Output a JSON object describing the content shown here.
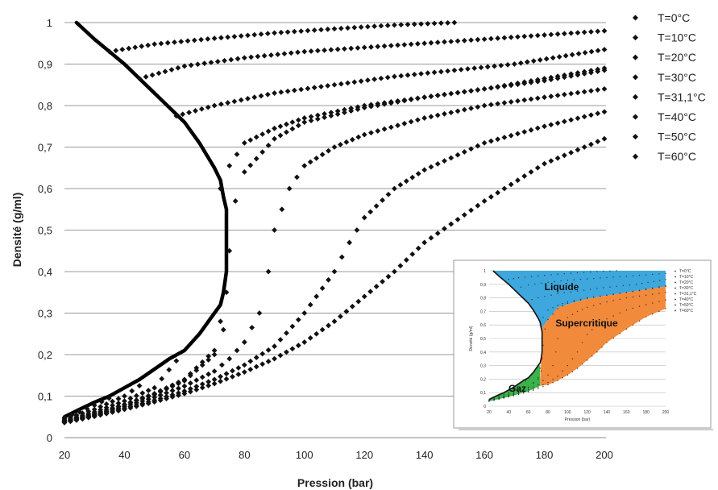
{
  "chart_data": {
    "type": "scatter",
    "xlabel": "Pression (bar)",
    "ylabel": "Densité (g/ml)",
    "xlim": [
      20,
      200
    ],
    "ylim": [
      0,
      1
    ],
    "xticks": [
      "20",
      "40",
      "60",
      "80",
      "100",
      "120",
      "140",
      "160",
      "180",
      "200"
    ],
    "yticks": [
      "0",
      "0,1",
      "0,2",
      "0,3",
      "0,4",
      "0,5",
      "0,6",
      "0,7",
      "0,8",
      "0,9",
      "1"
    ],
    "grid": "horizontal",
    "legend_position": "right",
    "point_color": "#111111",
    "series": [
      {
        "name": "T=0°C",
        "x": [
          20,
          25,
          30,
          34.85,
          35,
          50,
          70,
          90,
          110,
          130,
          150
        ],
        "y": [
          0.048,
          0.062,
          0.078,
          0.095,
          0.93,
          0.948,
          0.962,
          0.975,
          0.985,
          0.994,
          1.0
        ]
      },
      {
        "name": "T=10°C",
        "x": [
          20,
          30,
          40,
          45,
          45.02,
          60,
          80,
          100,
          120,
          140,
          160,
          180,
          200
        ],
        "y": [
          0.045,
          0.068,
          0.1,
          0.125,
          0.865,
          0.895,
          0.915,
          0.93,
          0.94,
          0.95,
          0.96,
          0.97,
          0.98
        ]
      },
      {
        "name": "T=20°C",
        "x": [
          20,
          30,
          40,
          50,
          57.3,
          57.3,
          70,
          90,
          110,
          130,
          150,
          170,
          200
        ],
        "y": [
          0.042,
          0.062,
          0.088,
          0.12,
          0.185,
          0.775,
          0.8,
          0.83,
          0.85,
          0.87,
          0.885,
          0.9,
          0.935
        ]
      },
      {
        "name": "T=30°C",
        "x": [
          20,
          30,
          40,
          50,
          60,
          70,
          72,
          72,
          75,
          80,
          90,
          100,
          120,
          140,
          160,
          180,
          200
        ],
        "y": [
          0.04,
          0.058,
          0.08,
          0.106,
          0.14,
          0.21,
          0.28,
          0.6,
          0.655,
          0.71,
          0.745,
          0.77,
          0.8,
          0.82,
          0.84,
          0.865,
          0.89
        ]
      },
      {
        "name": "T=31,1°C",
        "x": [
          20,
          30,
          40,
          50,
          60,
          70,
          73,
          74,
          75,
          77,
          80,
          90,
          100,
          120,
          140,
          160,
          180,
          200
        ],
        "y": [
          0.04,
          0.058,
          0.079,
          0.104,
          0.137,
          0.2,
          0.26,
          0.35,
          0.45,
          0.57,
          0.64,
          0.72,
          0.76,
          0.795,
          0.82,
          0.84,
          0.86,
          0.885
        ]
      },
      {
        "name": "T=40°C",
        "x": [
          20,
          30,
          40,
          50,
          60,
          70,
          75,
          80,
          85,
          88,
          90,
          95,
          100,
          110,
          120,
          140,
          160,
          180,
          200
        ],
        "y": [
          0.038,
          0.055,
          0.075,
          0.097,
          0.124,
          0.16,
          0.19,
          0.23,
          0.3,
          0.4,
          0.5,
          0.6,
          0.655,
          0.7,
          0.73,
          0.77,
          0.8,
          0.82,
          0.84
        ]
      },
      {
        "name": "T=50°C",
        "x": [
          20,
          30,
          40,
          50,
          60,
          70,
          80,
          90,
          100,
          110,
          115,
          120,
          130,
          140,
          160,
          180,
          200
        ],
        "y": [
          0.037,
          0.053,
          0.071,
          0.09,
          0.112,
          0.14,
          0.175,
          0.22,
          0.3,
          0.4,
          0.47,
          0.53,
          0.6,
          0.645,
          0.71,
          0.75,
          0.785
        ]
      },
      {
        "name": "T=60°C",
        "x": [
          20,
          30,
          40,
          50,
          60,
          70,
          80,
          90,
          100,
          110,
          120,
          130,
          140,
          160,
          180,
          200
        ],
        "y": [
          0.036,
          0.051,
          0.068,
          0.086,
          0.106,
          0.13,
          0.158,
          0.19,
          0.23,
          0.28,
          0.34,
          0.4,
          0.47,
          0.57,
          0.66,
          0.72
        ]
      }
    ],
    "phase_boundary": {
      "x": [
        24,
        30,
        40,
        50,
        60,
        65,
        70,
        72,
        73,
        74,
        74,
        74,
        73,
        72,
        70,
        65,
        60,
        55,
        50,
        45,
        40,
        35,
        30,
        25,
        20
      ],
      "y": [
        1.0,
        0.96,
        0.9,
        0.83,
        0.76,
        0.71,
        0.65,
        0.62,
        0.58,
        0.55,
        0.5,
        0.4,
        0.35,
        0.32,
        0.3,
        0.25,
        0.21,
        0.19,
        0.165,
        0.14,
        0.12,
        0.1,
        0.085,
        0.068,
        0.05
      ]
    },
    "inset": {
      "xlabel": "Pression (bar)",
      "ylabel": "Densité (g/ml)",
      "xticks": [
        "20",
        "40",
        "60",
        "80",
        "100",
        "120",
        "140",
        "160",
        "180",
        "200"
      ],
      "yticks": [
        "0",
        "0,1",
        "0,2",
        "0,3",
        "0,4",
        "0,5",
        "0,6",
        "0,7",
        "0,8",
        "0,9",
        "1"
      ],
      "legend": [
        "T=0°C",
        "T=10°C",
        "T=20°C",
        "T=30°C",
        "T=31,1°C",
        "T=40°C",
        "T=50°C",
        "T=60°C"
      ],
      "regions": [
        {
          "name": "Liquide",
          "color": "#3ea7dd"
        },
        {
          "name": "Supercritique",
          "color": "#f28a3c"
        },
        {
          "name": "Gaz",
          "color": "#3bb34a"
        }
      ]
    }
  }
}
